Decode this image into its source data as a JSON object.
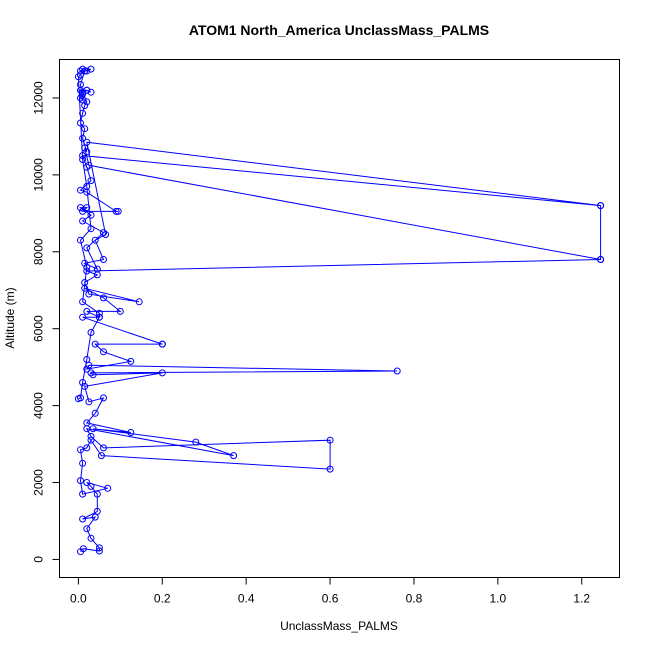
{
  "chart_data": {
    "type": "line",
    "title": "ATOM1 North_America UnclassMass_PALMS",
    "xlabel": "UnclassMass_PALMS",
    "ylabel": "Altitude (m)",
    "xlim": [
      -0.045,
      1.29
    ],
    "ylim": [
      -470,
      13000
    ],
    "xticks": [
      0.0,
      0.2,
      0.4,
      0.6,
      0.8,
      1.0,
      1.2
    ],
    "xtick_labels": [
      "0.0",
      "0.2",
      "0.4",
      "0.6",
      "0.8",
      "1.0",
      "1.2"
    ],
    "yticks": [
      0,
      2000,
      4000,
      6000,
      8000,
      10000,
      12000
    ],
    "ytick_labels": [
      "0",
      "2000",
      "4000",
      "6000",
      "8000",
      "10000",
      "12000"
    ],
    "grid": false,
    "legend": "none",
    "color": "#0000ff",
    "marker": "open-circle",
    "series": [
      {
        "x": [
          0.005,
          0.012,
          0.05,
          0.05,
          0.03,
          0.02,
          0.04,
          0.01,
          0.045,
          0.045,
          0.03,
          0.02,
          0.07,
          0.01,
          0.005,
          0.01,
          0.005,
          0.02,
          0.03,
          0.055,
          0.6,
          0.6,
          0.06,
          0.03,
          0.02,
          0.37,
          0.28,
          0.035,
          0.125,
          0.02,
          0.04,
          0.06,
          0.025,
          0.015,
          0.2,
          0.035,
          0.03,
          0.76,
          0.025,
          0.02,
          0.125,
          0.06,
          0.04,
          0.2,
          0.2,
          0.01,
          0.05,
          0.02,
          0.1,
          0.06,
          0.015,
          0.145,
          0.025,
          0.015,
          0.045,
          0.02,
          1.245,
          1.245,
          0.02,
          0.065,
          0.04,
          0.06,
          0.015,
          0.045,
          0.02,
          0.06,
          0.01,
          0.03,
          0.005,
          0.02,
          0.01,
          0.095,
          0.09,
          0.02,
          0.005,
          0.03,
          0.02,
          0.01,
          1.245,
          1.245,
          0.025,
          0.015,
          0.02,
          0.01,
          0.015,
          0.005,
          0.01,
          0.015,
          0.02,
          0.01,
          0.005,
          0.02,
          0.03,
          0.02,
          0.01,
          0.005,
          0.01,
          0.005,
          0.015,
          0.03,
          0.02,
          0.005,
          0.01,
          0.005,
          0.0,
          0.01,
          0.02,
          0.03,
          0.005,
          0.02,
          0.01,
          0.05,
          0.05,
          0.03,
          0.02,
          0.01,
          0.005,
          0.0
        ],
        "y": [
          200,
          280,
          220,
          300,
          550,
          800,
          1100,
          1050,
          1250,
          1700,
          1900,
          2000,
          1850,
          1700,
          2050,
          2500,
          2850,
          2900,
          3100,
          2700,
          2350,
          3100,
          2900,
          3200,
          3400,
          2700,
          3050,
          3400,
          3300,
          3550,
          3800,
          4200,
          4100,
          4500,
          4850,
          4800,
          4850,
          4900,
          5050,
          4950,
          5150,
          5400,
          5600,
          5600,
          5600,
          6300,
          6300,
          6450,
          6450,
          6800,
          7050,
          6700,
          6900,
          7200,
          7400,
          7500,
          7800,
          9200,
          10850,
          8450,
          8300,
          7800,
          7700,
          7550,
          8100,
          8500,
          8800,
          8950,
          9150,
          9150,
          9050,
          9050,
          9050,
          9550,
          9600,
          9850,
          10200,
          10500,
          9200,
          7800,
          10250,
          10700,
          10600,
          10950,
          11200,
          11350,
          11600,
          11800,
          11900,
          12150,
          12200,
          12200,
          12150,
          12200,
          12100,
          12000,
          11950,
          12350,
          12700,
          12750,
          12700,
          12700,
          12750,
          12600,
          12550,
          10400,
          9700,
          8600,
          8300,
          7600,
          6700,
          6400,
          6300,
          5900,
          5200,
          4600,
          4200,
          4180
        ]
      }
    ]
  }
}
